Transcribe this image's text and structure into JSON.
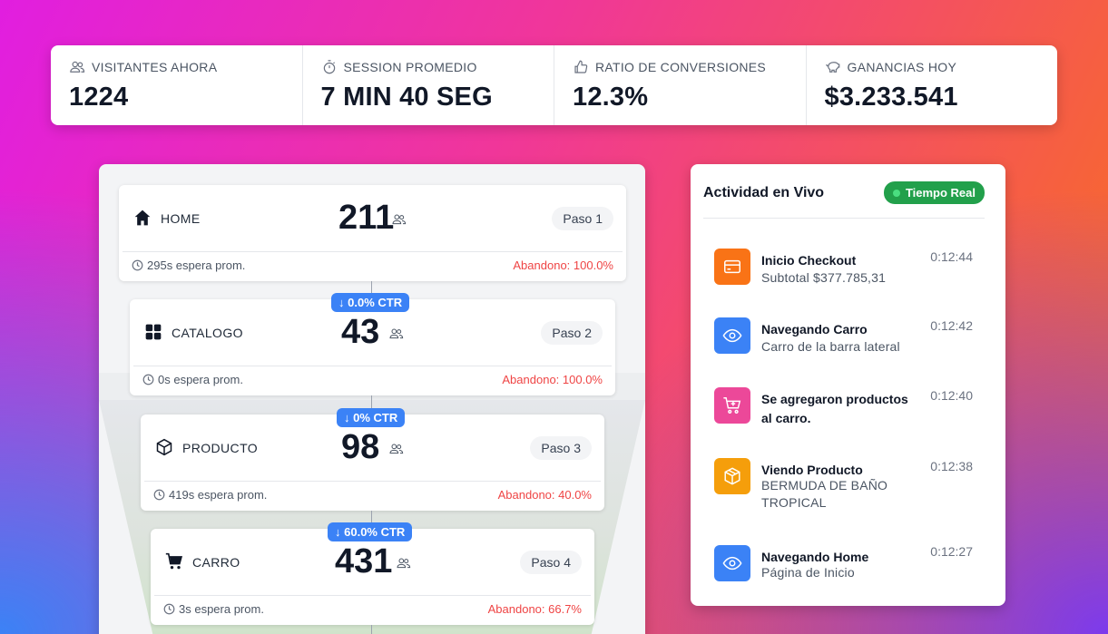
{
  "stats": [
    {
      "label": "VISITANTES AHORA",
      "value": "1224",
      "icon": "users-icon"
    },
    {
      "label": "SESSION PROMEDIO",
      "value": "7 MIN 40 SEG",
      "icon": "timer-icon"
    },
    {
      "label": "RATIO DE CONVERSIONES",
      "value": "12.3%",
      "icon": "thumbs-up-icon"
    },
    {
      "label": "GANANCIAS HOY",
      "value": "$3.233.541",
      "icon": "piggy-bank-icon"
    }
  ],
  "funnel": {
    "steps": [
      {
        "name": "HOME",
        "count": "211",
        "paso": "Paso 1",
        "wait": "295s espera prom.",
        "abandon": "Abandono: 100.0%",
        "icon": "home-icon"
      },
      {
        "name": "CATALOGO",
        "count": "43",
        "paso": "Paso 2",
        "wait": "0s espera prom.",
        "abandon": "Abandono: 100.0%",
        "ctr": "0.0% CTR",
        "icon": "grid-icon"
      },
      {
        "name": "PRODUCTO",
        "count": "98",
        "paso": "Paso 3",
        "wait": "419s espera prom.",
        "abandon": "Abandono: 40.0%",
        "ctr": "0% CTR",
        "icon": "box-icon"
      },
      {
        "name": "CARRO",
        "count": "431",
        "paso": "Paso 4",
        "wait": "3s espera prom.",
        "abandon": "Abandono: 66.7%",
        "ctr": "60.0% CTR",
        "icon": "cart-icon"
      }
    ]
  },
  "live": {
    "title": "Actividad en Vivo",
    "badge": "Tiempo Real",
    "items": [
      {
        "title": "Inicio Checkout",
        "sub": "Subtotal $377.785,31",
        "time": "0:12:44",
        "color": "#f97316",
        "icon": "credit-card-icon"
      },
      {
        "title": "Navegando Carro",
        "sub": "Carro de la barra lateral",
        "time": "0:12:42",
        "color": "#3b82f6",
        "icon": "eye-icon"
      },
      {
        "title": "Se agregaron productos al carro.",
        "sub": "",
        "time": "0:12:40",
        "color": "#ec4899",
        "icon": "cart-plus-icon"
      },
      {
        "title": "Viendo Producto",
        "sub": "BERMUDA DE BAÑO TROPICAL",
        "time": "0:12:38",
        "color": "#f59e0b",
        "icon": "box-icon"
      },
      {
        "title": "Navegando Home",
        "sub": "Página de Inicio",
        "time": "0:12:27",
        "color": "#3b82f6",
        "icon": "eye-icon"
      }
    ]
  }
}
